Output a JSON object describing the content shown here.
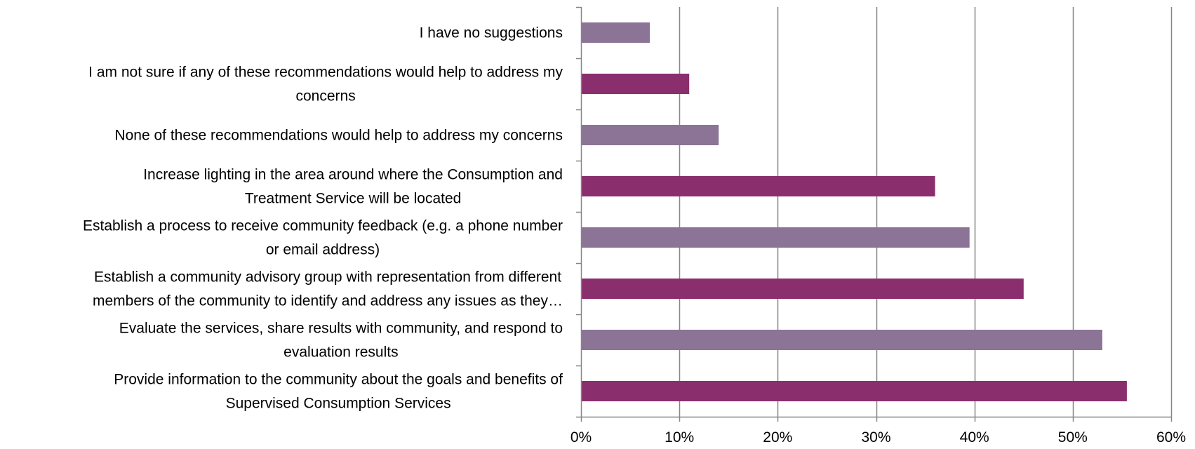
{
  "chart_data": {
    "type": "bar",
    "orientation": "horizontal",
    "categories": [
      [
        "I have no suggestions"
      ],
      [
        "I am not sure if any of these recommendations would help to address my",
        "concerns"
      ],
      [
        "None of these recommendations would help to address my concerns"
      ],
      [
        "Increase lighting in the area around where the Consumption and",
        "Treatment Service  will be located"
      ],
      [
        "Establish a process to receive community feedback (e.g. a phone number",
        "or email address)"
      ],
      [
        "Establish a community advisory group with representation from different",
        "members of the community to identify and address any issues as they…"
      ],
      [
        "Evaluate the services, share results with community, and respond to",
        "evaluation results"
      ],
      [
        "Provide information to the community about the goals and benefits of",
        "Supervised Consumption Services"
      ]
    ],
    "values": [
      7,
      11,
      14,
      36,
      39.5,
      45,
      53,
      55.5
    ],
    "bar_colors": [
      "#8b7496",
      "#8b2e6e",
      "#8b7496",
      "#8b2e6e",
      "#8b7496",
      "#8b2e6e",
      "#8b7496",
      "#8b2e6e"
    ],
    "xlim": [
      0,
      60
    ],
    "xticks": [
      0,
      10,
      20,
      30,
      40,
      50,
      60
    ],
    "xtick_labels": [
      "0%",
      "10%",
      "20%",
      "30%",
      "40%",
      "50%",
      "60%"
    ],
    "grid": "vertical",
    "gridline_color": "#868686",
    "title": "",
    "xlabel": "",
    "ylabel": ""
  }
}
